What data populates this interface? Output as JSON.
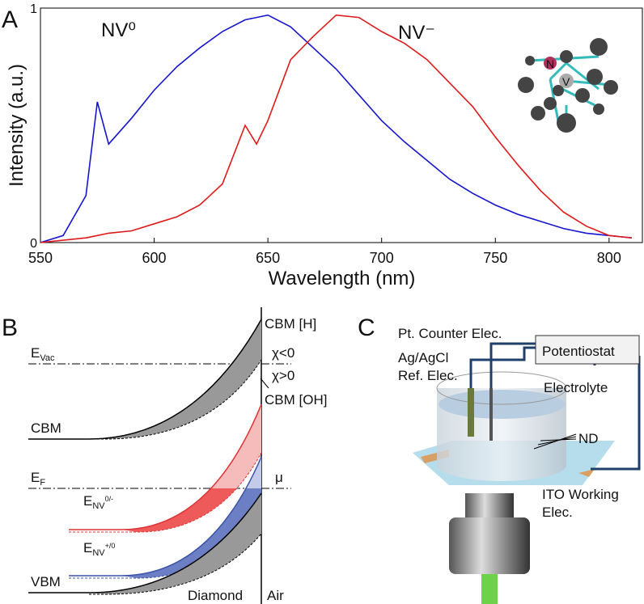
{
  "chart_data": {
    "type": "line",
    "panel": "A",
    "x_label": "Wavelength (nm)",
    "y_label": "Intensity (a.u.)",
    "x": [
      550,
      560,
      570,
      575,
      580,
      590,
      600,
      610,
      620,
      630,
      640,
      645,
      650,
      660,
      670,
      680,
      690,
      700,
      710,
      720,
      730,
      740,
      750,
      760,
      770,
      780,
      790,
      800,
      810
    ],
    "series": [
      {
        "name": "NV⁰",
        "color": "#1515d0",
        "values": [
          0,
          0.03,
          0.2,
          0.6,
          0.42,
          0.53,
          0.65,
          0.75,
          0.83,
          0.9,
          0.95,
          0.96,
          0.97,
          0.92,
          0.83,
          0.74,
          0.63,
          0.52,
          0.43,
          0.35,
          0.27,
          0.21,
          0.16,
          0.12,
          0.09,
          0.06,
          0.04,
          0.03,
          0.02
        ]
      },
      {
        "name": "NV⁻",
        "color": "#e01a1a",
        "values": [
          0,
          0.01,
          0.02,
          0.03,
          0.04,
          0.05,
          0.08,
          0.11,
          0.16,
          0.25,
          0.5,
          0.42,
          0.52,
          0.78,
          0.88,
          0.97,
          0.96,
          0.9,
          0.85,
          0.78,
          0.68,
          0.58,
          0.45,
          0.33,
          0.22,
          0.13,
          0.07,
          0.03,
          0.02
        ]
      }
    ],
    "xlim": [
      550,
      815
    ],
    "xticks": [
      550,
      600,
      650,
      700,
      750,
      800
    ],
    "ylim": [
      0,
      1
    ],
    "yticks": [
      0,
      1
    ],
    "inset": {
      "atom_n": "N",
      "atom_v": "V"
    }
  },
  "panel_b": {
    "label": "B",
    "cbm_h": "CBM [H]",
    "cbm_oh": "CBM [OH]",
    "e_vac": {
      "main": "E",
      "sub": "Vac"
    },
    "chi_neg": "χ<0",
    "chi_pos": "χ>0",
    "cbm": "CBM",
    "e_f": {
      "main": "E",
      "sub": "F"
    },
    "mu": "μ",
    "e_nv0": {
      "main": "E",
      "sub": "NV",
      "sup": "0/-"
    },
    "e_nvp": {
      "main": "E",
      "sub": "NV",
      "sup": "+/0"
    },
    "vbm": "VBM",
    "diamond": "Diamond",
    "air": "Air"
  },
  "panel_c": {
    "label": "C",
    "counter": "Pt. Counter Elec.",
    "potentiostat": "Potentiostat",
    "ref_1": "Ag/AgCl",
    "ref_2": "Ref. Elec.",
    "electrolyte": "Electrolyte",
    "nd": "ND",
    "ito_1": "ITO Working",
    "ito_2": "Elec."
  }
}
